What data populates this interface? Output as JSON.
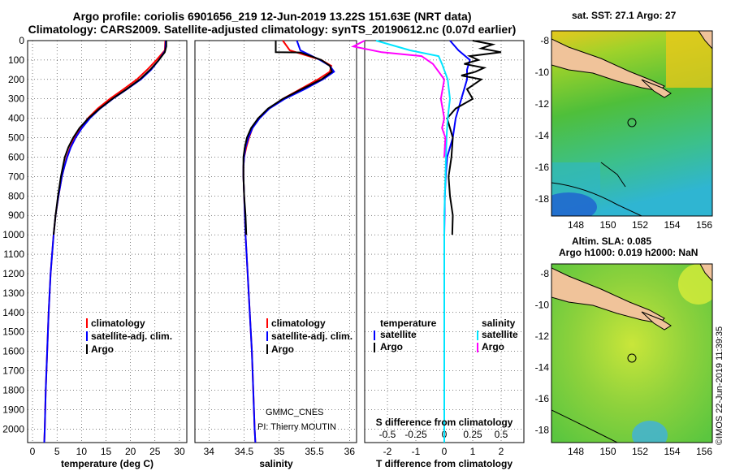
{
  "titles": {
    "line1": "Argo profile: coriolis 6901656_219 12-Jun-2019 13.22S 151.63E (NRT data)",
    "line2": "Climatology: CARS2009. Satellite-adjusted climatology: synTS_20190612.nc (0.07d earlier)"
  },
  "colors": {
    "climatology": "#ff0000",
    "satellite": "#0000ff",
    "argo": "#000000",
    "sal_satellite": "#00e5ff",
    "sal_argo": "#ff00ff"
  },
  "chart_data": [
    {
      "type": "line",
      "id": "temperature",
      "xlabel": "temperature (deg C)",
      "ylabel": "",
      "xlim": [
        -1,
        31.5
      ],
      "ylim": [
        2070,
        0
      ],
      "xticks": [
        0,
        5,
        10,
        15,
        20,
        25,
        30
      ],
      "legend": [
        "climatology",
        "satellite-adj. clim.",
        "Argo"
      ],
      "series": [
        {
          "name": "climatology",
          "depth": [
            0,
            50,
            100,
            150,
            200,
            250,
            300,
            350,
            400,
            450,
            500,
            550,
            600,
            650,
            700,
            800,
            900,
            1000,
            1200,
            1400,
            1600,
            1800,
            2000,
            2070
          ],
          "values": [
            27.1,
            27,
            25.3,
            23.4,
            21.3,
            18.6,
            15.8,
            13.3,
            11.3,
            9.9,
            8.6,
            7.7,
            7.0,
            6.5,
            6.0,
            5.3,
            4.7,
            4.3,
            3.7,
            3.3,
            3.0,
            2.7,
            2.5,
            2.4
          ]
        },
        {
          "name": "satellite-adj. clim.",
          "depth": [
            0,
            50,
            100,
            150,
            200,
            250,
            300,
            350,
            400,
            450,
            500,
            550,
            600,
            650,
            700,
            800,
            900,
            1000,
            1200,
            1400,
            1600,
            1800,
            2000,
            2070
          ],
          "values": [
            27.2,
            27.1,
            25.8,
            24.2,
            22.1,
            19.3,
            16.4,
            13.8,
            11.7,
            10.1,
            8.8,
            7.8,
            7.1,
            6.5,
            6.0,
            5.3,
            4.7,
            4.3,
            3.7,
            3.3,
            3.0,
            2.7,
            2.5,
            2.4
          ]
        },
        {
          "name": "Argo",
          "depth": [
            0,
            30,
            60,
            100,
            150,
            200,
            250,
            300,
            350,
            400,
            450,
            500,
            550,
            600,
            650,
            700,
            800,
            900,
            1000
          ],
          "values": [
            27.3,
            27.3,
            27.0,
            25.8,
            24.0,
            21.9,
            19.2,
            16.3,
            13.7,
            11.4,
            9.6,
            8.3,
            7.3,
            6.6,
            6.2,
            5.8,
            5.2,
            4.7,
            4.3
          ]
        }
      ]
    },
    {
      "type": "line",
      "id": "salinity",
      "xlabel": "salinity",
      "ylabel": "",
      "xlim": [
        33.8,
        36.1
      ],
      "ylim": [
        2070,
        0
      ],
      "xticks": [
        34,
        34.5,
        35,
        35.5,
        36
      ],
      "legend": [
        "climatology",
        "satellite-adj. clim.",
        "Argo"
      ],
      "credits": [
        "GMMC_CNES",
        "PI: Thierry MOUTIN"
      ],
      "series": [
        {
          "name": "climatology",
          "depth": [
            0,
            50,
            100,
            130,
            160,
            200,
            250,
            300,
            350,
            400,
            450,
            500,
            550,
            600,
            650,
            700,
            800,
            1000,
            1200,
            1400,
            1600,
            1800,
            2000,
            2070
          ],
          "values": [
            35.05,
            35.15,
            35.6,
            35.74,
            35.72,
            35.55,
            35.3,
            35.05,
            34.85,
            34.7,
            34.62,
            34.57,
            34.53,
            34.5,
            34.49,
            34.49,
            34.5,
            34.52,
            34.55,
            34.58,
            34.61,
            34.63,
            34.65,
            34.66
          ]
        },
        {
          "name": "satellite-adj. clim.",
          "depth": [
            0,
            50,
            100,
            130,
            160,
            200,
            250,
            300,
            350,
            400,
            450,
            500,
            550,
            600,
            650,
            700,
            800,
            1000,
            1200,
            1400,
            1600,
            1800,
            2000,
            2070
          ],
          "values": [
            35.25,
            35.3,
            35.58,
            35.72,
            35.78,
            35.62,
            35.36,
            35.08,
            34.86,
            34.72,
            34.62,
            34.56,
            34.52,
            34.5,
            34.49,
            34.49,
            34.5,
            34.52,
            34.55,
            34.58,
            34.61,
            34.63,
            34.65,
            34.66
          ]
        },
        {
          "name": "Argo",
          "depth": [
            0,
            60,
            61,
            80,
            100,
            130,
            160,
            200,
            250,
            300,
            350,
            400,
            450,
            500,
            550,
            600,
            700,
            800,
            900,
            1000
          ],
          "values": [
            34.95,
            34.95,
            35.3,
            35.45,
            35.6,
            35.72,
            35.75,
            35.6,
            35.32,
            35.05,
            34.84,
            34.7,
            34.6,
            34.54,
            34.51,
            34.49,
            34.49,
            34.5,
            34.52,
            34.53
          ]
        }
      ]
    },
    {
      "type": "line",
      "id": "difference",
      "xlabel": "T difference from climatology",
      "secondary_xlabel": "S difference from climatology",
      "xlim": [
        -2.8,
        2.8
      ],
      "ylim": [
        2070,
        0
      ],
      "xticks": [
        -2,
        -1,
        0,
        1,
        2
      ],
      "secondary_xticks": [
        "-0.5",
        "-0.25",
        "0",
        "0.25",
        "0.5"
      ],
      "legend_temperature": [
        "temperature",
        "satellite",
        "Argo"
      ],
      "legend_salinity": [
        "salinity",
        "satellite",
        "Argo"
      ],
      "series": [
        {
          "name": "T satellite",
          "depth": [
            0,
            50,
            100,
            150,
            200,
            300,
            400,
            500,
            600,
            700,
            800,
            1000,
            1200,
            1500,
            2000,
            2070
          ],
          "values": [
            0.2,
            0.5,
            0.9,
            0.8,
            0.8,
            0.6,
            0.4,
            0.3,
            0.1,
            0.05,
            0.02,
            0.0,
            0.0,
            0.0,
            0.0,
            0.0
          ]
        },
        {
          "name": "T Argo",
          "depth": [
            0,
            20,
            40,
            60,
            80,
            100,
            120,
            140,
            160,
            180,
            200,
            250,
            300,
            350,
            400,
            450,
            500,
            600,
            700,
            800,
            900,
            1000
          ],
          "values": [
            1.0,
            1.7,
            1.3,
            2.0,
            0.9,
            1.2,
            0.7,
            1.4,
            1.1,
            0.6,
            1.3,
            0.8,
            1.0,
            0.4,
            0.1,
            0.2,
            0.3,
            0.25,
            0.15,
            0.2,
            0.3,
            0.28
          ]
        },
        {
          "name": "S satellite",
          "depth": [
            0,
            50,
            80,
            120,
            200,
            300,
            400,
            500,
            700,
            900,
            1200,
            1500,
            2000,
            2070
          ],
          "values": [
            -0.6,
            -0.3,
            -0.05,
            -0.02,
            0.03,
            0.05,
            0.03,
            0.02,
            0.01,
            0.0,
            0.0,
            0.0,
            0.0,
            0.0
          ]
        },
        {
          "name": "S Argo",
          "depth": [
            0,
            30,
            60,
            80,
            120,
            200,
            300,
            400,
            450,
            500,
            600
          ],
          "values": [
            -0.7,
            -0.8,
            -0.55,
            -0.2,
            -0.1,
            0.0,
            -0.03,
            0.0,
            -0.02,
            0.01,
            0.0
          ]
        }
      ]
    }
  ],
  "maps": {
    "sst": {
      "title": "sat. SST: 27.1 Argo: 27",
      "xticks": [
        "148",
        "150",
        "152",
        "154",
        "156"
      ],
      "yticks": [
        "-8",
        "-10",
        "-12",
        "-14",
        "-16",
        "-18"
      ]
    },
    "sla": {
      "title_line1": "Altim. SLA: 0.085",
      "title_line2": "Argo h1000: 0.019 h2000: NaN",
      "xticks": [
        "148",
        "150",
        "152",
        "154",
        "156"
      ],
      "yticks": [
        "-8",
        "-10",
        "-12",
        "-14",
        "-16",
        "-18"
      ]
    }
  },
  "imos_stamp": "©IMOS 22-Jun-2019 11:39:35"
}
